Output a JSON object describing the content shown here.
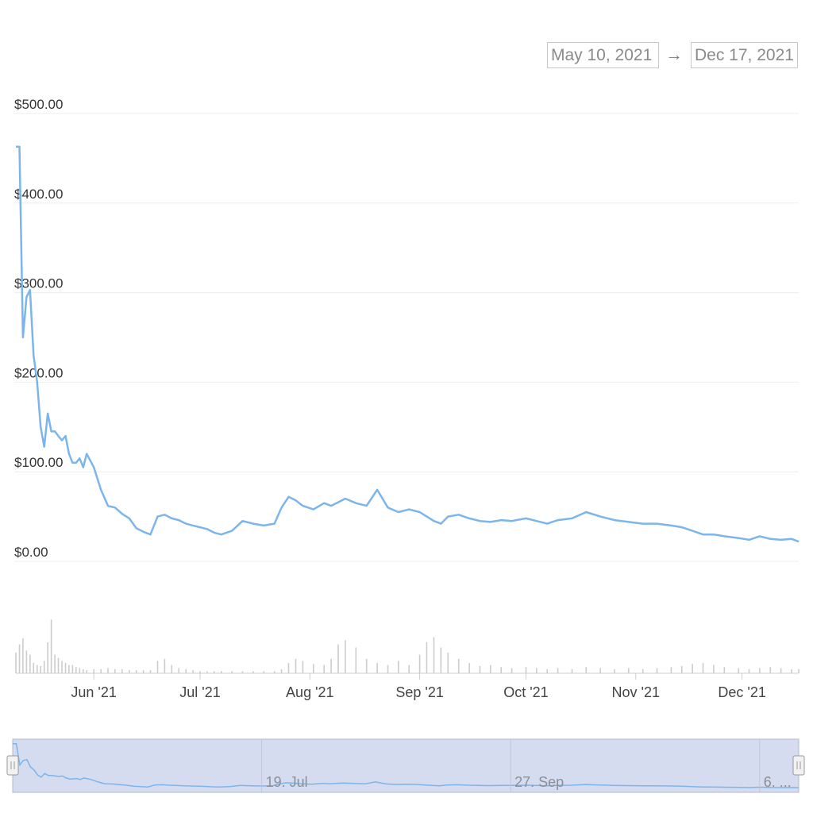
{
  "range_selector": {
    "from": "May 10, 2021",
    "arrow": "→",
    "to": "Dec 17, 2021"
  },
  "colors": {
    "line": "#7cb5ec",
    "volume": "#cccccc",
    "grid": "#eeeeee",
    "navigator_fill": "#d5dcef",
    "navigator_border": "#b0b8c8"
  },
  "chart_data": {
    "type": "line",
    "title": "",
    "xlabel": "",
    "ylabel": "",
    "ylim": [
      0,
      500
    ],
    "xlim": [
      "2021-05-10",
      "2021-12-17"
    ],
    "y_ticks": [
      "$0.00",
      "$100.00",
      "$200.00",
      "$300.00",
      "$400.00",
      "$500.00"
    ],
    "y_tick_values": [
      0,
      100,
      200,
      300,
      400,
      500
    ],
    "x_ticks": [
      "Jun '21",
      "Jul '21",
      "Aug '21",
      "Sep '21",
      "Oct '21",
      "Nov '21",
      "Dec '21"
    ],
    "x_tick_dates": [
      "2021-06-01",
      "2021-07-01",
      "2021-08-01",
      "2021-09-01",
      "2021-10-01",
      "2021-11-01",
      "2021-12-01"
    ],
    "grid": true,
    "legend": "none",
    "series": [
      {
        "x": [
          "2021-05-10",
          "2021-05-11",
          "2021-05-12",
          "2021-05-13",
          "2021-05-14",
          "2021-05-15",
          "2021-05-16",
          "2021-05-17",
          "2021-05-18",
          "2021-05-19",
          "2021-05-20",
          "2021-05-21",
          "2021-05-22",
          "2021-05-23",
          "2021-05-24",
          "2021-05-25",
          "2021-05-26",
          "2021-05-27",
          "2021-05-28",
          "2021-05-29",
          "2021-05-30",
          "2021-06-01",
          "2021-06-03",
          "2021-06-05",
          "2021-06-07",
          "2021-06-09",
          "2021-06-11",
          "2021-06-13",
          "2021-06-15",
          "2021-06-17",
          "2021-06-19",
          "2021-06-21",
          "2021-06-23",
          "2021-06-25",
          "2021-06-27",
          "2021-06-29",
          "2021-07-01",
          "2021-07-03",
          "2021-07-05",
          "2021-07-07",
          "2021-07-10",
          "2021-07-13",
          "2021-07-16",
          "2021-07-19",
          "2021-07-22",
          "2021-07-24",
          "2021-07-26",
          "2021-07-28",
          "2021-07-30",
          "2021-08-02",
          "2021-08-05",
          "2021-08-07",
          "2021-08-09",
          "2021-08-11",
          "2021-08-14",
          "2021-08-17",
          "2021-08-20",
          "2021-08-23",
          "2021-08-26",
          "2021-08-29",
          "2021-09-01",
          "2021-09-03",
          "2021-09-05",
          "2021-09-07",
          "2021-09-09",
          "2021-09-12",
          "2021-09-15",
          "2021-09-18",
          "2021-09-21",
          "2021-09-24",
          "2021-09-27",
          "2021-10-01",
          "2021-10-04",
          "2021-10-07",
          "2021-10-10",
          "2021-10-14",
          "2021-10-18",
          "2021-10-22",
          "2021-10-26",
          "2021-10-30",
          "2021-11-03",
          "2021-11-07",
          "2021-11-11",
          "2021-11-14",
          "2021-11-17",
          "2021-11-20",
          "2021-11-23",
          "2021-11-26",
          "2021-11-30",
          "2021-12-03",
          "2021-12-06",
          "2021-12-09",
          "2021-12-12",
          "2021-12-15",
          "2021-12-17"
        ],
        "y": [
          463,
          463,
          250,
          295,
          303,
          230,
          200,
          150,
          128,
          165,
          145,
          145,
          140,
          135,
          140,
          120,
          110,
          110,
          115,
          105,
          120,
          105,
          80,
          62,
          60,
          53,
          48,
          37,
          33,
          30,
          50,
          52,
          48,
          46,
          42,
          40,
          38,
          36,
          32,
          30,
          34,
          45,
          42,
          40,
          42,
          60,
          72,
          68,
          62,
          58,
          65,
          62,
          66,
          70,
          65,
          62,
          80,
          60,
          55,
          58,
          55,
          50,
          45,
          42,
          50,
          52,
          48,
          45,
          44,
          46,
          45,
          48,
          45,
          42,
          46,
          48,
          55,
          50,
          46,
          44,
          42,
          42,
          40,
          38,
          34,
          30,
          30,
          28,
          26,
          24,
          28,
          25,
          24,
          25,
          22
        ]
      }
    ],
    "volume": [
      20,
      28,
      34,
      22,
      18,
      10,
      8,
      7,
      12,
      30,
      52,
      18,
      15,
      12,
      10,
      8,
      8,
      6,
      5,
      4,
      3,
      4,
      4,
      5,
      4,
      4,
      3,
      3,
      3,
      3,
      12,
      14,
      8,
      5,
      4,
      3,
      2,
      2,
      2,
      2,
      2,
      2,
      2,
      2,
      2,
      4,
      10,
      14,
      12,
      9,
      8,
      14,
      28,
      32,
      25,
      14,
      10,
      8,
      12,
      8,
      18,
      30,
      35,
      25,
      20,
      14,
      10,
      7,
      8,
      6,
      5,
      6,
      5,
      4,
      5,
      4,
      6,
      5,
      4,
      5,
      4,
      5,
      6,
      7,
      9,
      10,
      8,
      6,
      5,
      4,
      5,
      6,
      5,
      4,
      4
    ],
    "volume_ylim": [
      0,
      60
    ],
    "navigator": {
      "labels": [
        "19. Jul",
        "27. Sep",
        "6. ..."
      ],
      "label_dates": [
        "2021-07-19",
        "2021-09-27",
        "2021-12-06"
      ]
    }
  }
}
